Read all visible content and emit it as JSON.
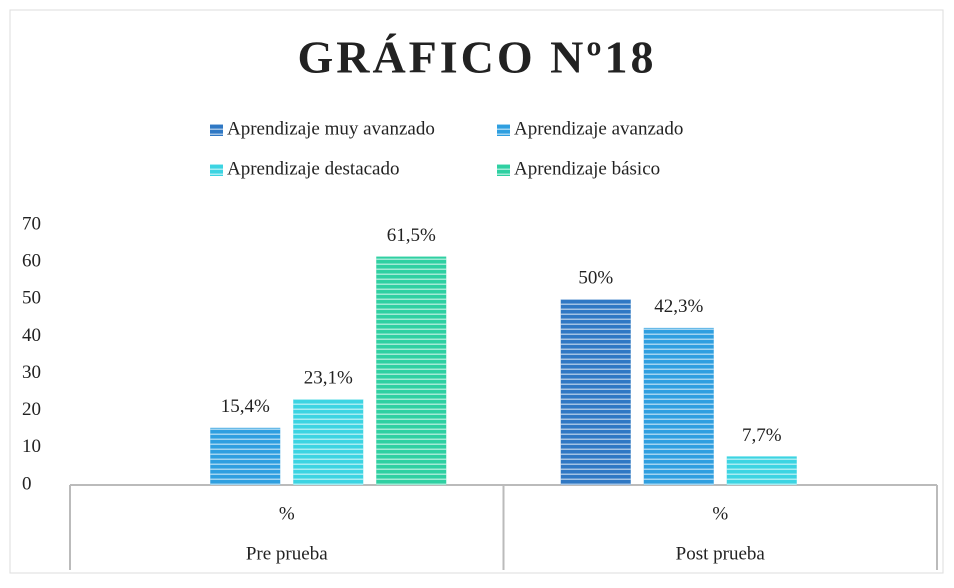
{
  "chart_data": {
    "type": "bar",
    "title": "GRÁFICO Nº18",
    "categories": [
      "Pre prueba",
      "Post prueba"
    ],
    "category_sublabels": [
      "%",
      "%"
    ],
    "series": [
      {
        "name": "Aprendizaje muy avanzado",
        "color": "#2f78c4",
        "values": [
          null,
          50
        ],
        "value_labels": [
          null,
          "50%"
        ]
      },
      {
        "name": "Aprendizaje avanzado",
        "color": "#2f9fe0",
        "values": [
          15.4,
          42.3
        ],
        "value_labels": [
          "15,4%",
          "42,3%"
        ]
      },
      {
        "name": "Aprendizaje destacado",
        "color": "#3cd4e2",
        "values": [
          23.1,
          7.7
        ],
        "value_labels": [
          "23,1%",
          "7,7%"
        ]
      },
      {
        "name": "Aprendizaje básico",
        "color": "#2fd0a2",
        "values": [
          61.5,
          null
        ],
        "value_labels": [
          "61,5%",
          null
        ]
      }
    ],
    "ylim": [
      0,
      70
    ],
    "yticks": [
      0,
      10,
      20,
      30,
      40,
      50,
      60,
      70
    ],
    "grid": false,
    "legend": "top"
  }
}
